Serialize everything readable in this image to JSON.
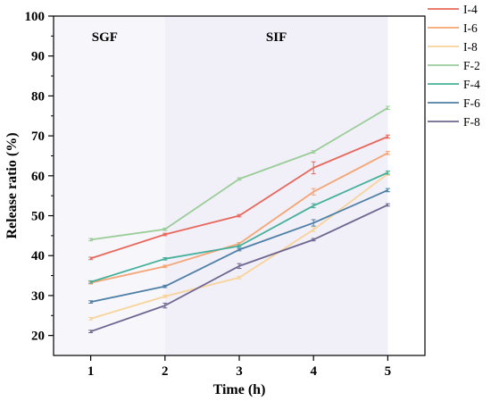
{
  "chart_data": {
    "type": "line",
    "xlabel": "Time (h)",
    "ylabel": "Release ratio (%)",
    "xlim": [
      0.5,
      5.5
    ],
    "ylim": [
      15,
      100
    ],
    "x": [
      1,
      2,
      3,
      4,
      5
    ],
    "x_ticks": [
      "1",
      "2",
      "3",
      "4",
      "5"
    ],
    "y_ticks": [
      "20",
      "30",
      "40",
      "50",
      "60",
      "70",
      "80",
      "90",
      "100"
    ],
    "y_tick_values": [
      20,
      30,
      40,
      50,
      60,
      70,
      80,
      90,
      100
    ],
    "grid": false,
    "legend_position": "right",
    "regions": [
      {
        "label": "SGF",
        "from": 0.5,
        "to": 2,
        "color": "#f6f6fb"
      },
      {
        "label": "SIF",
        "from": 2,
        "to": 5,
        "color": "#f1eff8"
      }
    ],
    "series": [
      {
        "name": "I-4",
        "color": "#e8675c",
        "values": [
          39.3,
          45.3,
          50.0,
          62.0,
          69.8
        ],
        "errors": [
          0.3,
          0.3,
          0.3,
          1.5,
          0.4
        ]
      },
      {
        "name": "I-6",
        "color": "#f5a473",
        "values": [
          33.2,
          37.3,
          43.0,
          56.0,
          65.7
        ],
        "errors": [
          0.3,
          0.3,
          0.3,
          0.8,
          0.4
        ]
      },
      {
        "name": "I-8",
        "color": "#f8d39a",
        "values": [
          24.2,
          29.8,
          34.5,
          46.5,
          60.5
        ],
        "errors": [
          0.3,
          0.3,
          0.3,
          0.5,
          0.4
        ]
      },
      {
        "name": "F-2",
        "color": "#9acd98",
        "values": [
          44.0,
          46.6,
          59.2,
          66.0,
          77.0
        ],
        "errors": [
          0.3,
          0.3,
          0.3,
          0.3,
          0.4
        ]
      },
      {
        "name": "F-4",
        "color": "#46b09a",
        "values": [
          33.4,
          39.2,
          42.4,
          52.5,
          60.8
        ],
        "errors": [
          0.3,
          0.3,
          0.3,
          0.5,
          0.4
        ]
      },
      {
        "name": "F-6",
        "color": "#4e7fa6",
        "values": [
          28.4,
          32.3,
          41.5,
          48.2,
          56.4
        ],
        "errors": [
          0.3,
          0.3,
          0.3,
          0.8,
          0.4
        ]
      },
      {
        "name": "F-8",
        "color": "#6d6690",
        "values": [
          21.0,
          27.5,
          37.4,
          44.0,
          52.7
        ],
        "errors": [
          0.3,
          0.6,
          0.6,
          0.3,
          0.3
        ]
      }
    ]
  }
}
